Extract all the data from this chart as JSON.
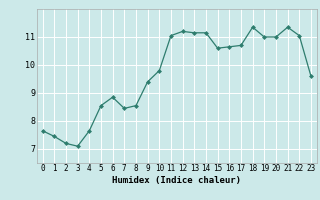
{
  "x": [
    0,
    1,
    2,
    3,
    4,
    5,
    6,
    7,
    8,
    9,
    10,
    11,
    12,
    13,
    14,
    15,
    16,
    17,
    18,
    19,
    20,
    21,
    22,
    23
  ],
  "y": [
    7.65,
    7.45,
    7.2,
    7.1,
    7.65,
    8.55,
    8.85,
    8.45,
    8.55,
    9.4,
    9.8,
    11.05,
    11.2,
    11.15,
    11.15,
    10.6,
    10.65,
    10.7,
    11.35,
    11.0,
    11.0,
    11.35,
    11.05,
    9.6
  ],
  "xlabel": "Humidex (Indice chaleur)",
  "xlim": [
    -0.5,
    23.5
  ],
  "ylim": [
    6.5,
    12.0
  ],
  "yticks": [
    7,
    8,
    9,
    10,
    11
  ],
  "xticks": [
    0,
    1,
    2,
    3,
    4,
    5,
    6,
    7,
    8,
    9,
    10,
    11,
    12,
    13,
    14,
    15,
    16,
    17,
    18,
    19,
    20,
    21,
    22,
    23
  ],
  "line_color": "#2e7d6e",
  "marker": "D",
  "marker_size": 2.0,
  "bg_color": "#cce9e9",
  "grid_color": "#ffffff",
  "spine_color": "#aaaaaa",
  "xlabel_fontsize": 6.5,
  "tick_fontsize": 5.5,
  "ytick_fontsize": 6.0
}
